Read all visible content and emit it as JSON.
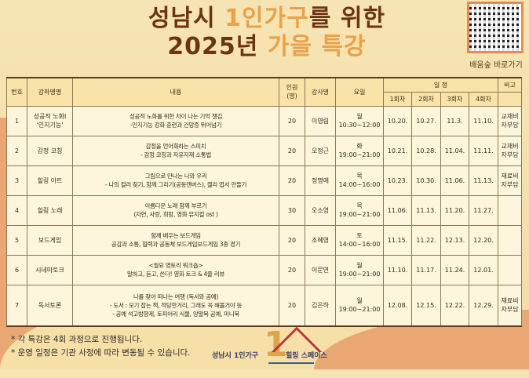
{
  "title": {
    "line1_a": "성남시 ",
    "line1_hl": "1인가구",
    "line1_b": "를 위한",
    "line2_a": "2025년 ",
    "line2_hl": "가을 특강"
  },
  "qr": {
    "label": "배움숲 바로가기"
  },
  "colors": {
    "brown": "#6b3513",
    "accent": "#e8a24a",
    "header_bg": "#f8e3a8",
    "table_bg": "#fdf5dc"
  },
  "table": {
    "headers": {
      "no": "번호",
      "course": "강좌명명",
      "content": "내용",
      "capacity": "인원\n(명)",
      "instructor": "강사명",
      "day": "요일",
      "schedule": "일 정",
      "note": "비고",
      "sessions": [
        "1회차",
        "2회차",
        "3회차",
        "4회차"
      ]
    },
    "rows": [
      {
        "no": "1",
        "course": "성공적 노화Ⅰ\n'인지기능'",
        "content": "성공적 노화를 위한 차이 나는 기억 챙김\n-인지기능 강화 훈련과 건망증 뛰어넘기",
        "capacity": "20",
        "instructor": "이영림",
        "day": "월\n10:30~12:00",
        "dates": [
          "10.20.",
          "10.27.",
          "11.3.",
          "11.10."
        ],
        "note": "교재비\n자부담"
      },
      {
        "no": "2",
        "course": "감정 코칭",
        "content": "감정을 언어화하는 스피치\n- 감정 코칭과 자유자재 소통법",
        "capacity": "20",
        "instructor": "오정근",
        "day": "화\n19:00~21:00",
        "dates": [
          "10.21.",
          "10.28.",
          "11.04.",
          "11.11."
        ],
        "note": "교재비\n자부담"
      },
      {
        "no": "3",
        "course": "힐링 아트",
        "content": "그림으로 만나는 나와 우리\n- 나의 컬러 찾기, 함께 그리기(공동캔버스), 캘리 엽서 만들기",
        "capacity": "20",
        "instructor": "정명애",
        "day": "목\n14:00~16:00",
        "dates": [
          "10.23.",
          "10.30.",
          "11.06.",
          "11.13."
        ],
        "note": "재료비\n자부담"
      },
      {
        "no": "4",
        "course": "힐링 노래",
        "content": "아름다운 노래 함께 부르기\n(자연, 사랑, 희망, 영화 뮤지컬 ost )",
        "capacity": "30",
        "instructor": "오소영",
        "day": "목\n19:00~21:00",
        "dates": [
          "11.06.",
          "11.13.",
          "11.20.",
          "11.27."
        ],
        "note": ""
      },
      {
        "no": "5",
        "course": "보드게임",
        "content": "함께 배우는 보드게임\n공감과 소통, 협력과 공동체 보드게임보드게임 3종 경기",
        "capacity": "20",
        "instructor": "조혜영",
        "day": "토\n14:00~16:00",
        "dates": [
          "11.15.",
          "11.22.",
          "12.13.",
          "12.20."
        ],
        "note": ""
      },
      {
        "no": "6",
        "course": "시네마토크",
        "content": "<월요 영토리 워크숍>\n말하고, 듣고, 쓴다! 영화 토크 & 4줄 리뷰",
        "capacity": "20",
        "instructor": "이문연",
        "day": "월\n19:00~21:00",
        "dates": [
          "11.10.",
          "11.17.",
          "11.24.",
          "12.01."
        ],
        "note": ""
      },
      {
        "no": "7",
        "course": "독서토론",
        "content": "나를 찾아 떠나는 여행 (독서와 공예)\n- 도서 : 모기 잡는 책, 적당한거리, 그래도 꼭 해볼거야 등\n- 공예 석고방향제, 토피어리 식물, 양말목 공예, 미니북",
        "capacity": "20",
        "instructor": "김은하",
        "day": "월\n19:00~21:00",
        "dates": [
          "12.08.",
          "12.15.",
          "12.22.",
          "12.29."
        ],
        "note": "재료비\n자부담"
      }
    ]
  },
  "notes": [
    "* 각 특강은 4회 과정으로 진행됩니다.",
    "* 운영 일정은 기관 사정에 따라 변동될 수 있습니다."
  ],
  "logo": {
    "left": "성남시 1인가구",
    "right": "힐링 스페이스",
    "one": "1"
  }
}
